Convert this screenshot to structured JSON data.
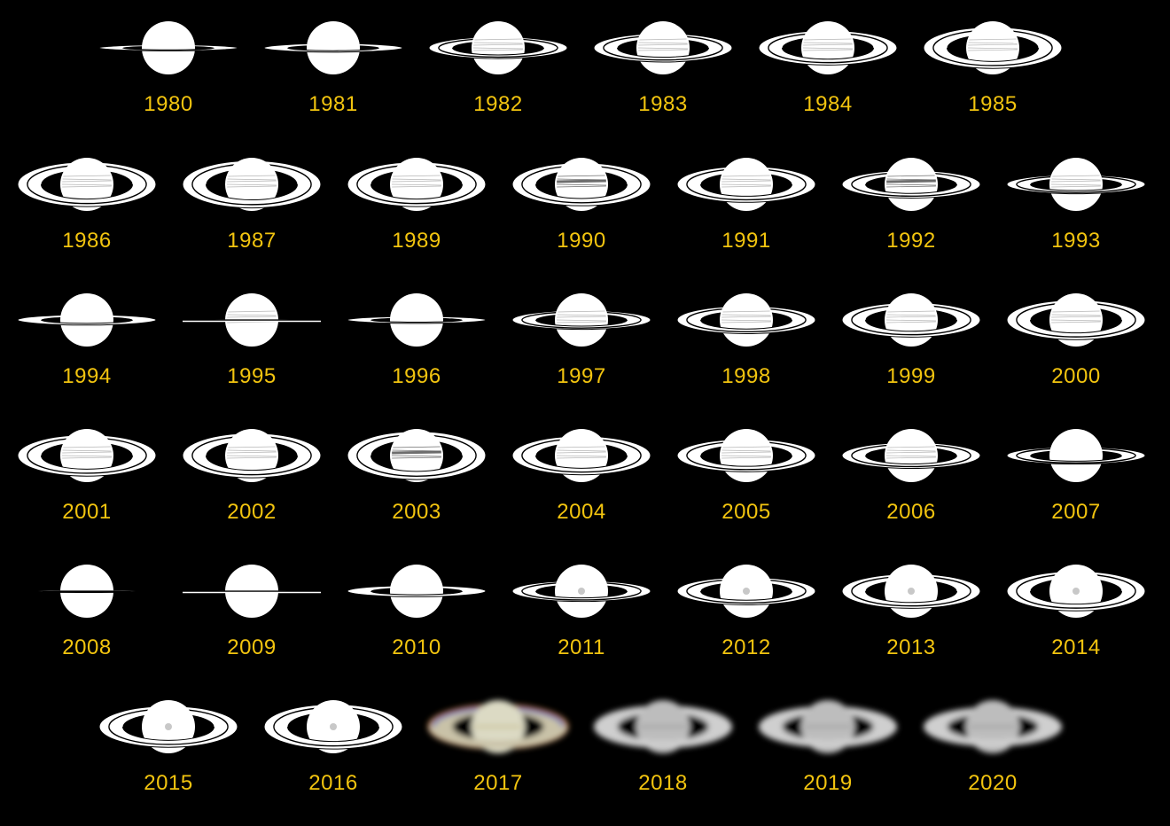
{
  "colors": {
    "background": "#000000",
    "label": "#f2c40f",
    "drawing": "#ffffff"
  },
  "rows": [
    [
      {
        "year": "1980",
        "tilt": 0.07,
        "style": "sketch",
        "belt": false
      },
      {
        "year": "1981",
        "tilt": 0.1,
        "style": "sketch",
        "belt": false
      },
      {
        "year": "1982",
        "tilt": 0.25,
        "style": "sketch",
        "belt": true
      },
      {
        "year": "1983",
        "tilt": 0.33,
        "style": "sketch",
        "belt": true
      },
      {
        "year": "1984",
        "tilt": 0.4,
        "style": "sketch",
        "belt": true
      },
      {
        "year": "1985",
        "tilt": 0.48,
        "style": "sketch",
        "belt": true
      }
    ],
    [
      {
        "year": "1986",
        "tilt": 0.52,
        "style": "sketch",
        "belt": true
      },
      {
        "year": "1987",
        "tilt": 0.55,
        "style": "sketch",
        "belt": true
      },
      {
        "year": "1989",
        "tilt": 0.52,
        "style": "sketch",
        "belt": true
      },
      {
        "year": "1990",
        "tilt": 0.5,
        "style": "sketch",
        "belt": true,
        "darkBelt": true
      },
      {
        "year": "1991",
        "tilt": 0.42,
        "style": "sketch",
        "belt": true
      },
      {
        "year": "1992",
        "tilt": 0.32,
        "style": "sketch",
        "belt": true,
        "darkBelt": true
      },
      {
        "year": "1993",
        "tilt": 0.22,
        "style": "sketch",
        "belt": true
      }
    ],
    [
      {
        "year": "1994",
        "tilt": 0.12,
        "style": "sketch",
        "belt": false
      },
      {
        "year": "1995",
        "tilt": 0.02,
        "style": "sketch",
        "belt": true
      },
      {
        "year": "1996",
        "tilt": 0.08,
        "style": "sketch",
        "belt": false
      },
      {
        "year": "1997",
        "tilt": 0.22,
        "style": "sketch",
        "belt": true
      },
      {
        "year": "1998",
        "tilt": 0.32,
        "style": "sketch",
        "belt": true
      },
      {
        "year": "1999",
        "tilt": 0.4,
        "style": "sketch",
        "belt": true
      },
      {
        "year": "2000",
        "tilt": 0.46,
        "style": "sketch",
        "belt": true
      }
    ],
    [
      {
        "year": "2001",
        "tilt": 0.48,
        "style": "sketch",
        "belt": true
      },
      {
        "year": "2002",
        "tilt": 0.52,
        "style": "sketch",
        "belt": true
      },
      {
        "year": "2003",
        "tilt": 0.56,
        "style": "sketch",
        "belt": true,
        "darkBelt": true
      },
      {
        "year": "2004",
        "tilt": 0.45,
        "style": "sketch",
        "belt": true
      },
      {
        "year": "2005",
        "tilt": 0.38,
        "style": "sketch",
        "belt": true
      },
      {
        "year": "2006",
        "tilt": 0.3,
        "style": "sketch",
        "belt": true
      },
      {
        "year": "2007",
        "tilt": 0.2,
        "style": "sketch",
        "belt": false
      }
    ],
    [
      {
        "year": "2008",
        "tilt": 0.03,
        "style": "sketch",
        "belt": false
      },
      {
        "year": "2009",
        "tilt": 0.01,
        "style": "sketch",
        "belt": false
      },
      {
        "year": "2010",
        "tilt": 0.13,
        "style": "sketch",
        "belt": false
      },
      {
        "year": "2011",
        "tilt": 0.24,
        "style": "sketch",
        "belt": true,
        "grayBelt": true
      },
      {
        "year": "2012",
        "tilt": 0.32,
        "style": "sketch",
        "belt": true,
        "grayBelt": true
      },
      {
        "year": "2013",
        "tilt": 0.4,
        "style": "sketch",
        "belt": true,
        "grayBelt": true
      },
      {
        "year": "2014",
        "tilt": 0.46,
        "style": "sketch",
        "belt": true,
        "grayBelt": true
      }
    ],
    [
      {
        "year": "2015",
        "tilt": 0.48,
        "style": "sketch",
        "belt": true,
        "grayBelt": true
      },
      {
        "year": "2016",
        "tilt": 0.52,
        "style": "sketch",
        "belt": true,
        "grayBelt": true
      },
      {
        "year": "2017",
        "tilt": 0.5,
        "style": "photo-color"
      },
      {
        "year": "2018",
        "tilt": 0.5,
        "style": "photo-gray"
      },
      {
        "year": "2019",
        "tilt": 0.48,
        "style": "photo-gray"
      },
      {
        "year": "2020",
        "tilt": 0.46,
        "style": "photo-gray"
      }
    ]
  ]
}
